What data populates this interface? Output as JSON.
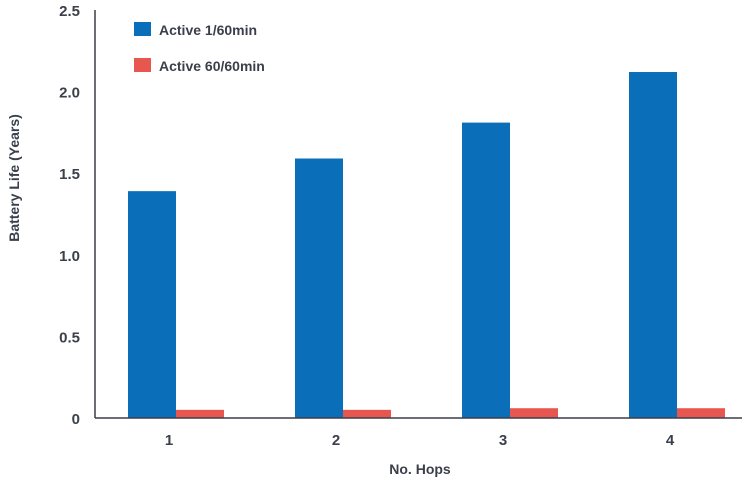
{
  "chart_data": {
    "type": "bar",
    "categories": [
      "1",
      "2",
      "3",
      "4"
    ],
    "series": [
      {
        "name": "Active 1/60min",
        "values": [
          1.39,
          1.59,
          1.81,
          2.12
        ],
        "color": "#0a6eb8"
      },
      {
        "name": "Active 60/60min",
        "values": [
          0.05,
          0.05,
          0.06,
          0.06
        ],
        "color": "#e8574f"
      }
    ],
    "xlabel": "No. Hops",
    "ylabel": "Battery Life (Years)",
    "ylim": [
      0,
      2.5
    ],
    "yticks": [
      0,
      0.5,
      1.0,
      1.5,
      2.0,
      2.5
    ],
    "ytick_labels": [
      "0",
      "0.5",
      "1.0",
      "1.5",
      "2.0",
      "2.5"
    ],
    "legend_position": "top-left",
    "grid": false
  }
}
